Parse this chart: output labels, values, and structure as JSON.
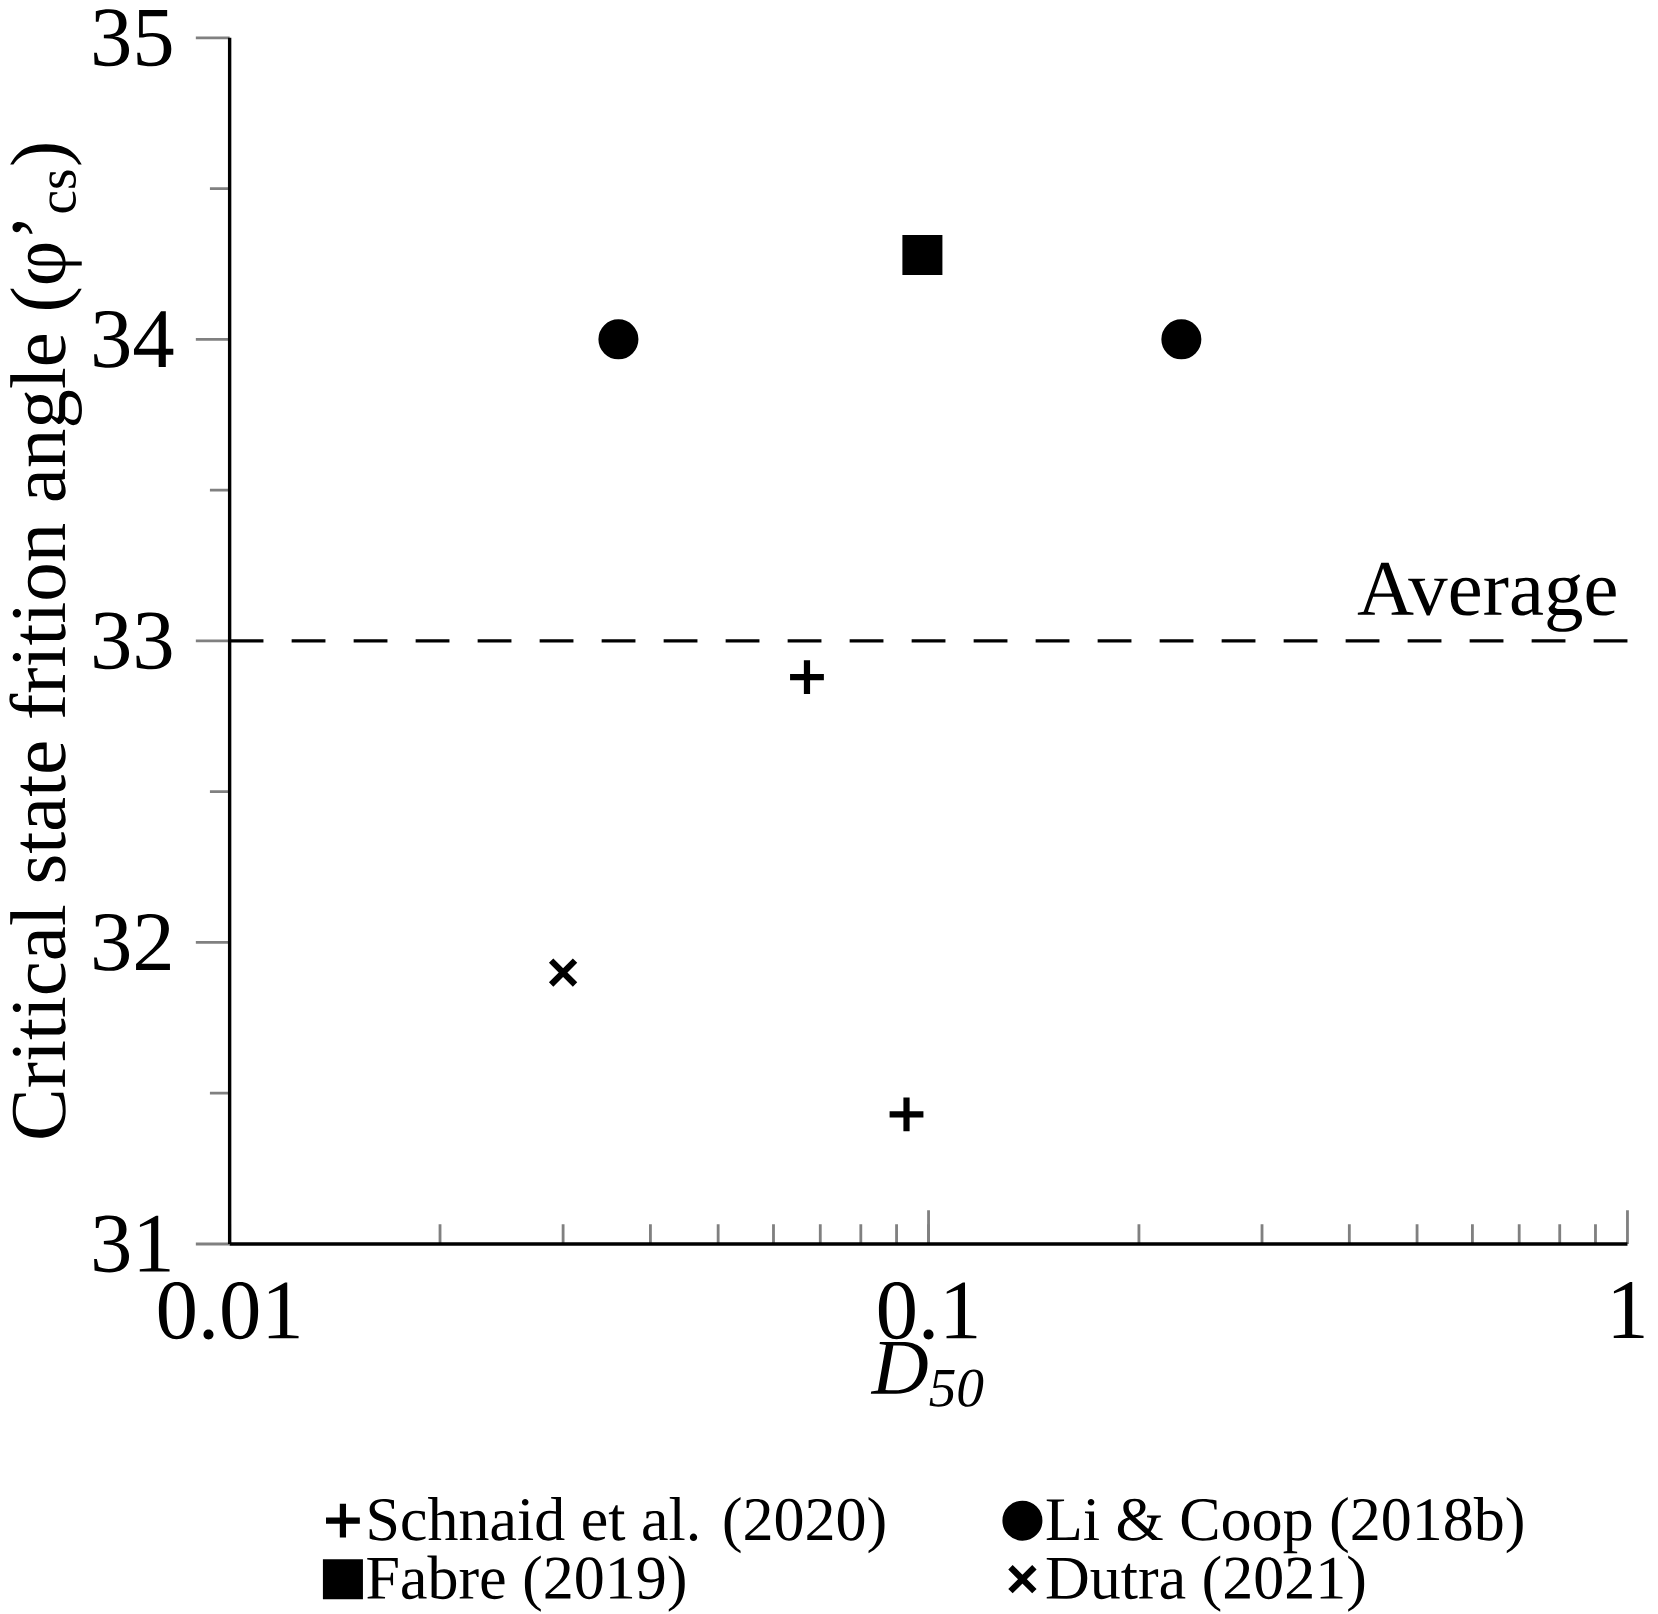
{
  "chart_data": {
    "type": "scatter",
    "xlabel": "D$_{50}$",
    "ylabel": "Critical state frition angle (φ’$_{cs}$)",
    "xlim": [
      0.01,
      1
    ],
    "xticks": [
      0.01,
      0.1,
      1
    ],
    "ylim": [
      31,
      35
    ],
    "yticks": [
      31,
      32,
      33,
      34,
      35
    ],
    "log": "x",
    "grid": false,
    "legend": "bottom",
    "series": [
      {
        "name": "Schnaid et al. (2020)",
        "color": "#000000",
        "marker": "plus",
        "x": [
          0.067,
          0.093
        ],
        "values": [
          32.88,
          31.43
        ]
      },
      {
        "name": "Li & Coop (2018b)",
        "color": "#000000",
        "marker": "circle",
        "x": [
          0.036,
          0.23
        ],
        "values": [
          34.0,
          34.0
        ]
      },
      {
        "name": "Fabre (2019)",
        "color": "#000000",
        "marker": "square",
        "x": [
          0.098
        ],
        "values": [
          34.28
        ]
      },
      {
        "name": "Dutra (2021)",
        "color": "#000000",
        "marker": "cross",
        "x": [
          0.03
        ],
        "values": [
          31.9
        ]
      }
    ],
    "ref_lines": [
      {
        "axis": "y",
        "value": 33,
        "label": "Average",
        "line_style": "dashed",
        "color": "#000000"
      }
    ]
  }
}
